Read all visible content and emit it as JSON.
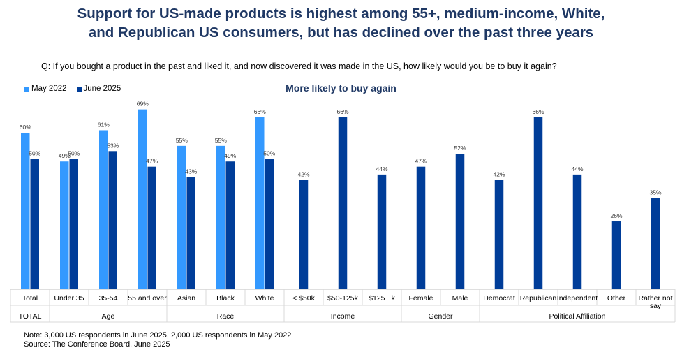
{
  "title_lines": [
    "Support for US-made products is highest among 55+, medium-income, White,",
    "and Republican US consumers, but has declined over the past three years"
  ],
  "question": "Q: If you bought a product in the past and liked it, and now discovered it was made in the US, how likely would you be to buy it again?",
  "notes": {
    "note": "Note: 3,000 US respondents in June 2025, 2,000 US respondents in May 2022",
    "source": "Source: The Conference Board, June 2025"
  },
  "colors": {
    "may2022": "#3399ff",
    "june2025": "#003d99",
    "title": "#1f3864"
  },
  "chart_data": {
    "type": "bar",
    "title": "More likely to buy again",
    "legend": [
      "May 2022",
      "June 2025"
    ],
    "legend_position": "top-left",
    "ylim": [
      0,
      70
    ],
    "categories": [
      "Total",
      "Under 35",
      "35-54",
      "55 and over",
      "Asian",
      "Black",
      "White",
      "< $50k",
      "$50-125k",
      "$125+ k",
      "Female",
      "Male",
      "Democrat",
      "Republican",
      "Independent",
      "Other",
      "Rather not say"
    ],
    "groups": [
      {
        "label": "TOTAL",
        "start": 0,
        "end": 0
      },
      {
        "label": "Age",
        "start": 1,
        "end": 3
      },
      {
        "label": "Race",
        "start": 4,
        "end": 6
      },
      {
        "label": "Income",
        "start": 7,
        "end": 9
      },
      {
        "label": "Gender",
        "start": 10,
        "end": 11
      },
      {
        "label": "Political Affiliation",
        "start": 12,
        "end": 16
      }
    ],
    "series": [
      {
        "name": "May 2022",
        "values": [
          60,
          49,
          61,
          69,
          55,
          55,
          66,
          null,
          null,
          null,
          null,
          null,
          null,
          null,
          null,
          null,
          null
        ]
      },
      {
        "name": "June 2025",
        "values": [
          50,
          50,
          53,
          47,
          43,
          49,
          50,
          42,
          66,
          44,
          47,
          52,
          42,
          66,
          44,
          26,
          35
        ]
      }
    ]
  }
}
